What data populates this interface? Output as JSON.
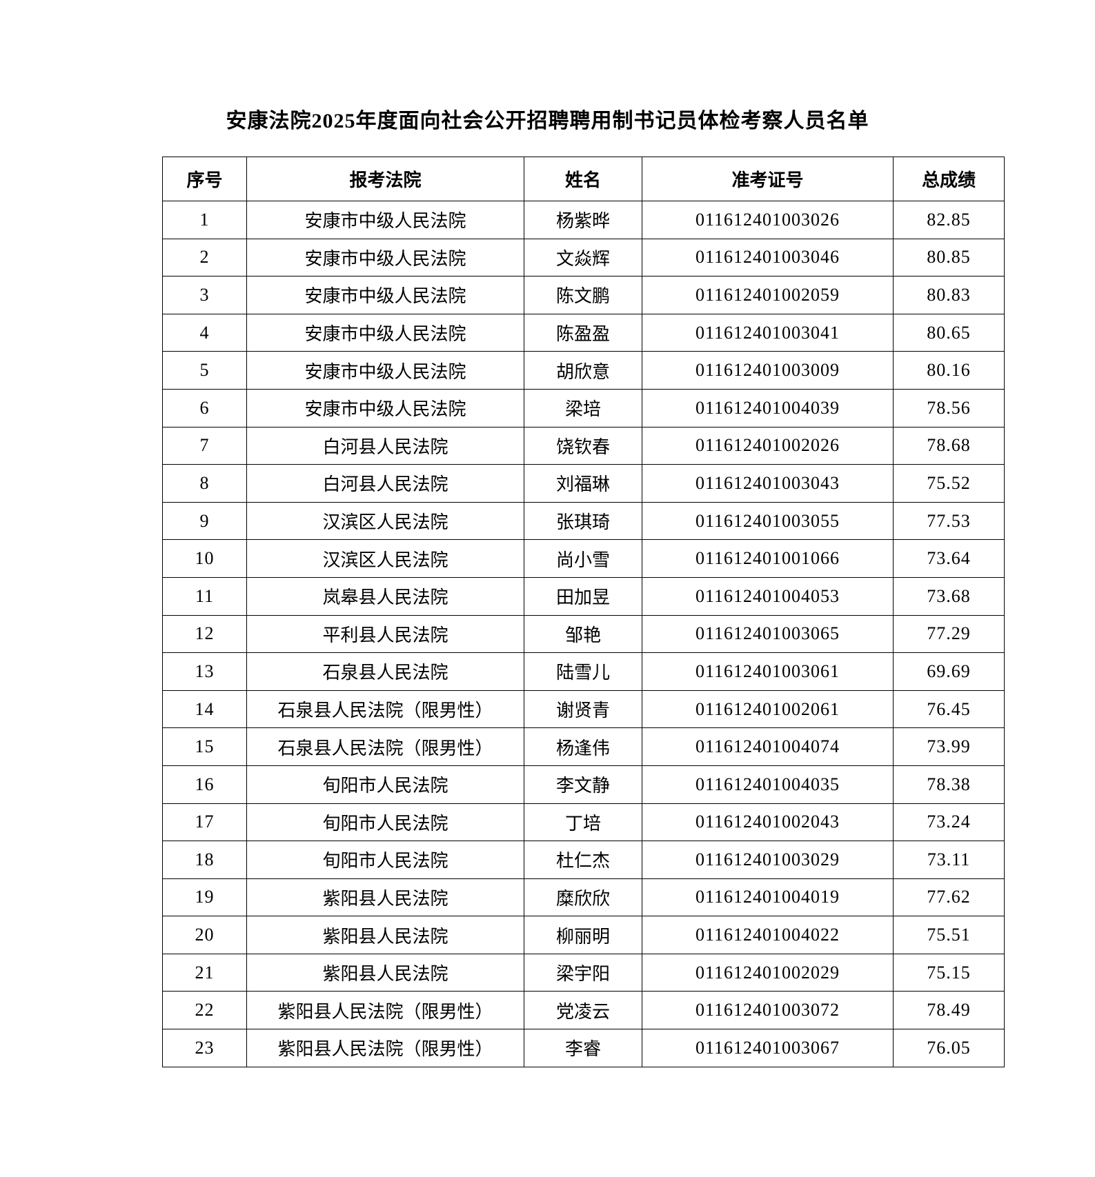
{
  "title": "安康法院2025年度面向社会公开招聘聘用制书记员体检考察人员名单",
  "table": {
    "headers": [
      "序号",
      "报考法院",
      "姓名",
      "准考证号",
      "总成绩"
    ],
    "rows": [
      [
        "1",
        "安康市中级人民法院",
        "杨紫晔",
        "011612401003026",
        "82.85"
      ],
      [
        "2",
        "安康市中级人民法院",
        "文焱辉",
        "011612401003046",
        "80.85"
      ],
      [
        "3",
        "安康市中级人民法院",
        "陈文鹏",
        "011612401002059",
        "80.83"
      ],
      [
        "4",
        "安康市中级人民法院",
        "陈盈盈",
        "011612401003041",
        "80.65"
      ],
      [
        "5",
        "安康市中级人民法院",
        "胡欣意",
        "011612401003009",
        "80.16"
      ],
      [
        "6",
        "安康市中级人民法院",
        "梁培",
        "011612401004039",
        "78.56"
      ],
      [
        "7",
        "白河县人民法院",
        "饶钦春",
        "011612401002026",
        "78.68"
      ],
      [
        "8",
        "白河县人民法院",
        "刘福琳",
        "011612401003043",
        "75.52"
      ],
      [
        "9",
        "汉滨区人民法院",
        "张琪琦",
        "011612401003055",
        "77.53"
      ],
      [
        "10",
        "汉滨区人民法院",
        "尚小雪",
        "011612401001066",
        "73.64"
      ],
      [
        "11",
        "岚皋县人民法院",
        "田加昱",
        "011612401004053",
        "73.68"
      ],
      [
        "12",
        "平利县人民法院",
        "邹艳",
        "011612401003065",
        "77.29"
      ],
      [
        "13",
        "石泉县人民法院",
        "陆雪儿",
        "011612401003061",
        "69.69"
      ],
      [
        "14",
        "石泉县人民法院（限男性）",
        "谢贤青",
        "011612401002061",
        "76.45"
      ],
      [
        "15",
        "石泉县人民法院（限男性）",
        "杨逢伟",
        "011612401004074",
        "73.99"
      ],
      [
        "16",
        "旬阳市人民法院",
        "李文静",
        "011612401004035",
        "78.38"
      ],
      [
        "17",
        "旬阳市人民法院",
        "丁培",
        "011612401002043",
        "73.24"
      ],
      [
        "18",
        "旬阳市人民法院",
        "杜仁杰",
        "011612401003029",
        "73.11"
      ],
      [
        "19",
        "紫阳县人民法院",
        "糜欣欣",
        "011612401004019",
        "77.62"
      ],
      [
        "20",
        "紫阳县人民法院",
        "柳丽明",
        "011612401004022",
        "75.51"
      ],
      [
        "21",
        "紫阳县人民法院",
        "梁宇阳",
        "011612401002029",
        "75.15"
      ],
      [
        "22",
        "紫阳县人民法院（限男性）",
        "党凌云",
        "011612401003072",
        "78.49"
      ],
      [
        "23",
        "紫阳县人民法院（限男性）",
        "李睿",
        "011612401003067",
        "76.05"
      ]
    ]
  }
}
